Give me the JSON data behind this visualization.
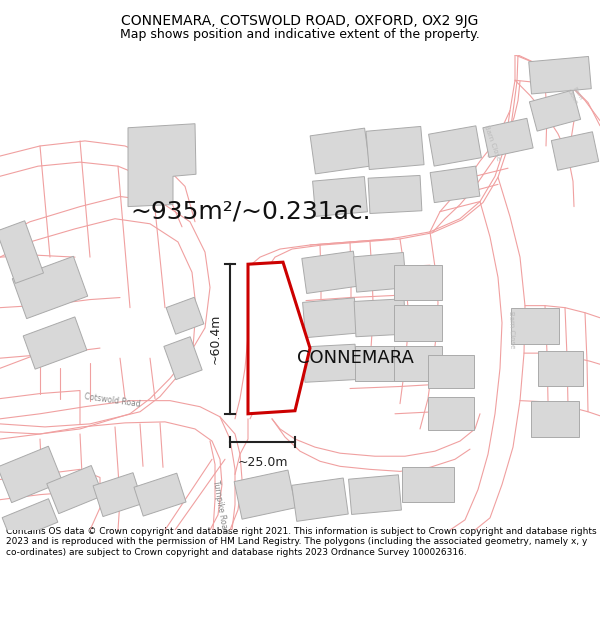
{
  "title": "CONNEMARA, COTSWOLD ROAD, OXFORD, OX2 9JG",
  "subtitle": "Map shows position and indicative extent of the property.",
  "footer": "Contains OS data © Crown copyright and database right 2021. This information is subject to Crown copyright and database rights 2023 and is reproduced with the permission of HM Land Registry. The polygons (including the associated geometry, namely x, y co-ordinates) are subject to Crown copyright and database rights 2023 Ordnance Survey 100026316.",
  "area_label": "~935m²/~0.231ac.",
  "property_label": "CONNEMARA",
  "dim_width_label": "~25.0m",
  "dim_height_label": "~60.4m",
  "bg_color": "#ffffff",
  "map_bg": "#ffffff",
  "road_line_color": "#f0a0a0",
  "building_face_color": "#d8d8d8",
  "building_edge_color": "#aaaaaa",
  "property_fill": "#ffffff",
  "property_edge": "#cc0000",
  "dim_color": "#222222",
  "road_label_color": "#888888",
  "title_fontsize": 10,
  "subtitle_fontsize": 9,
  "area_fontsize": 18,
  "property_label_fontsize": 13,
  "dim_fontsize": 9,
  "footer_fontsize": 6.5,
  "road_linewidth": 0.8,
  "building_linewidth": 0.7,
  "property_linewidth": 2.2
}
